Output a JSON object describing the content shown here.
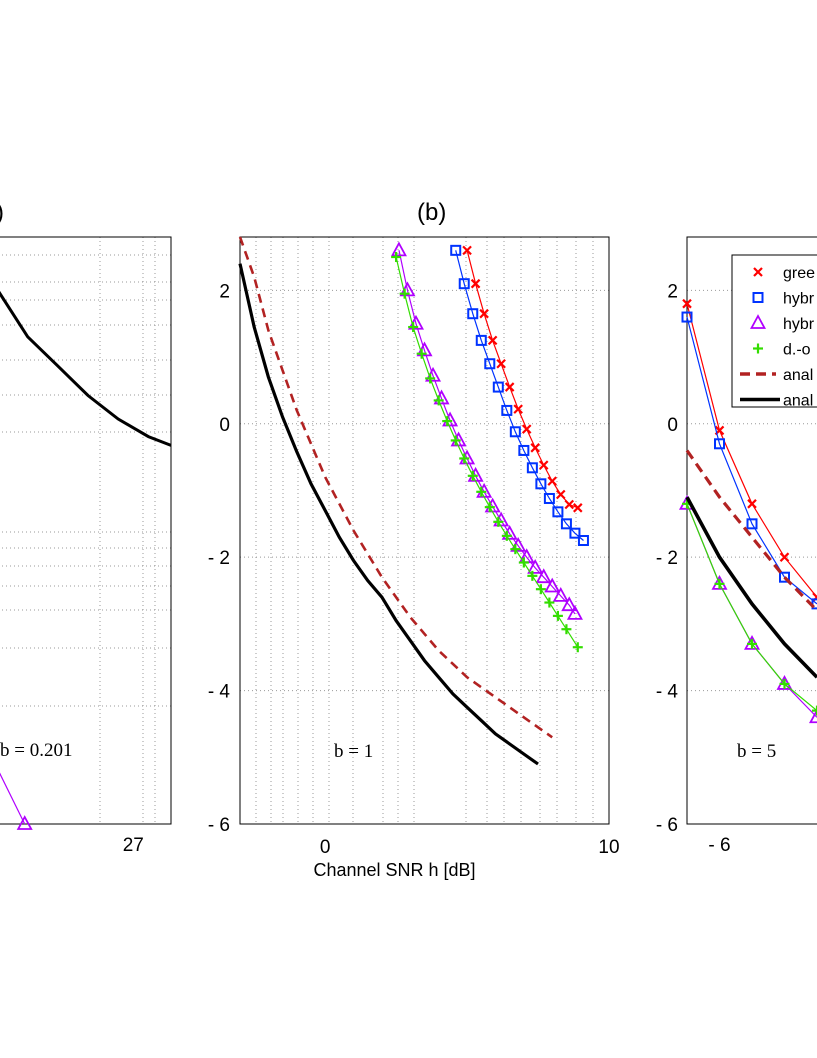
{
  "chart_data": [
    {
      "panel": "a",
      "type": "line",
      "title": "",
      "xlabel": "",
      "ylabel": "",
      "xticks": [
        27
      ],
      "xlim": [
        17.5,
        29.5
      ],
      "ylim": [
        0,
        10
      ],
      "annotation": "b = 0.201",
      "panel_label": ")",
      "series": [
        {
          "name": "analysis (black)",
          "color": "#000000",
          "style": "solid",
          "x": [
            17.5,
            20,
            22,
            24,
            26,
            27,
            28,
            29.5
          ],
          "y": [
            9.3,
            8.3,
            7.8,
            7.3,
            6.9,
            6.75,
            6.6,
            6.45
          ]
        },
        {
          "name": "hybrid (purple)",
          "color": "#b000ff",
          "style": "solid-triangle",
          "x": [
            17.5,
            19.8
          ],
          "y": [
            1.2,
            0.0
          ]
        }
      ]
    },
    {
      "panel": "b",
      "type": "line",
      "title": "(b)",
      "xlabel": "Channel SNR h  [dB]",
      "ylabel": "",
      "xlim": [
        -3,
        10
      ],
      "ylim": [
        -6,
        2.8
      ],
      "xticks": [
        0,
        10
      ],
      "yticks": [
        2,
        0,
        -2,
        -4,
        -6
      ],
      "ytick_labels": [
        "2",
        "0",
        "- 2",
        "- 4",
        "- 6"
      ],
      "annotation": "b = 1",
      "series": [
        {
          "name": "greedy",
          "color": "#ff0000",
          "marker": "x",
          "x": [
            5.0,
            5.3,
            5.6,
            5.9,
            6.2,
            6.5,
            6.8,
            7.1,
            7.4,
            7.7,
            8.0,
            8.3,
            8.6,
            8.9
          ],
          "y": [
            2.6,
            2.1,
            1.65,
            1.25,
            0.9,
            0.55,
            0.22,
            -0.08,
            -0.36,
            -0.62,
            -0.86,
            -1.06,
            -1.21,
            -1.26
          ]
        },
        {
          "name": "hybrid (blue)",
          "color": "#0033ff",
          "marker": "square",
          "x": [
            4.6,
            4.9,
            5.2,
            5.5,
            5.8,
            6.1,
            6.4,
            6.7,
            7.0,
            7.3,
            7.6,
            7.9,
            8.2,
            8.5,
            8.8,
            9.1
          ],
          "y": [
            2.6,
            2.1,
            1.65,
            1.25,
            0.9,
            0.55,
            0.2,
            -0.12,
            -0.4,
            -0.66,
            -0.9,
            -1.12,
            -1.32,
            -1.5,
            -1.64,
            -1.75
          ]
        },
        {
          "name": "hybrid (purple)",
          "color": "#b000ff",
          "marker": "triangle",
          "x": [
            2.6,
            2.9,
            3.2,
            3.5,
            3.8,
            4.1,
            4.4,
            4.7,
            5.0,
            5.3,
            5.6,
            5.9,
            6.2,
            6.5,
            6.8,
            7.1,
            7.4,
            7.7,
            8.0,
            8.3,
            8.6,
            8.8
          ],
          "y": [
            2.6,
            2.0,
            1.5,
            1.1,
            0.72,
            0.38,
            0.05,
            -0.25,
            -0.52,
            -0.78,
            -1.02,
            -1.24,
            -1.45,
            -1.65,
            -1.83,
            -2.0,
            -2.16,
            -2.3,
            -2.44,
            -2.58,
            -2.72,
            -2.85
          ]
        },
        {
          "name": "d.-o.",
          "color": "#33dd00",
          "marker": "plus",
          "x": [
            2.5,
            2.8,
            3.1,
            3.4,
            3.7,
            4.0,
            4.3,
            4.6,
            4.9,
            5.2,
            5.5,
            5.8,
            6.1,
            6.4,
            6.7,
            7.0,
            7.3,
            7.6,
            7.9,
            8.2,
            8.5,
            8.9
          ],
          "y": [
            2.5,
            1.95,
            1.45,
            1.05,
            0.68,
            0.35,
            0.04,
            -0.25,
            -0.52,
            -0.78,
            -1.02,
            -1.25,
            -1.47,
            -1.68,
            -1.88,
            -2.08,
            -2.28,
            -2.48,
            -2.68,
            -2.88,
            -3.08,
            -3.35
          ]
        },
        {
          "name": "analysis (dashed)",
          "color": "#b22222",
          "style": "dashed",
          "x": [
            -3,
            -2.5,
            -2,
            -1.5,
            -1,
            -0.5,
            0,
            1,
            2,
            3,
            4,
            5,
            6,
            7,
            8
          ],
          "y": [
            2.8,
            2.2,
            1.4,
            0.8,
            0.2,
            -0.3,
            -0.8,
            -1.6,
            -2.3,
            -2.9,
            -3.4,
            -3.8,
            -4.1,
            -4.4,
            -4.7
          ]
        },
        {
          "name": "analysis (solid)",
          "color": "#000000",
          "style": "solid",
          "x": [
            -3,
            -2.5,
            -2,
            -1.5,
            -1,
            -0.5,
            0,
            0.5,
            1,
            1.5,
            2,
            2.5,
            3,
            3.5,
            4,
            4.5,
            5,
            5.5,
            6,
            6.5,
            7,
            7.5
          ],
          "y": [
            2.4,
            1.45,
            0.7,
            0.1,
            -0.42,
            -0.9,
            -1.3,
            -1.7,
            -2.05,
            -2.35,
            -2.6,
            -2.95,
            -3.25,
            -3.55,
            -3.8,
            -4.05,
            -4.25,
            -4.45,
            -4.65,
            -4.8,
            -4.95,
            -5.1
          ]
        }
      ]
    },
    {
      "panel": "c",
      "type": "line",
      "title": "",
      "xlabel": "",
      "ylabel": "",
      "xlim": [
        -7,
        -2.6
      ],
      "ylim": [
        -6,
        2.8
      ],
      "xticks": [
        -6
      ],
      "xtick_labels": [
        "- 6"
      ],
      "yticks": [
        2,
        0,
        -2,
        -4,
        -6
      ],
      "ytick_labels": [
        "2",
        "0",
        "- 2",
        "- 4",
        "- 6"
      ],
      "annotation": "b = 5",
      "legend_location": "top-right",
      "legend": [
        {
          "label": "gree",
          "marker": "x",
          "color": "#ff0000"
        },
        {
          "label": "hybr",
          "marker": "square",
          "color": "#0033ff"
        },
        {
          "label": "hybr",
          "marker": "triangle",
          "color": "#b000ff"
        },
        {
          "label": "d.-o",
          "marker": "plus",
          "color": "#33dd00"
        },
        {
          "label": "anal",
          "marker": "dashed-line",
          "color": "#b22222"
        },
        {
          "label": "anal",
          "marker": "solid-line",
          "color": "#000000"
        }
      ],
      "series": [
        {
          "name": "gree",
          "color": "#ff0000",
          "marker": "x",
          "x": [
            -7,
            -6,
            -5,
            -4,
            -3
          ],
          "y": [
            1.8,
            -0.1,
            -1.2,
            -2.0,
            -2.6
          ]
        },
        {
          "name": "hybr (blue)",
          "color": "#0033ff",
          "marker": "square",
          "x": [
            -7,
            -6,
            -5,
            -4,
            -3
          ],
          "y": [
            1.6,
            -0.3,
            -1.5,
            -2.3,
            -2.7
          ]
        },
        {
          "name": "hybr (purple)",
          "color": "#b000ff",
          "marker": "triangle",
          "x": [
            -7,
            -6,
            -5,
            -4,
            -3
          ],
          "y": [
            -1.2,
            -2.4,
            -3.3,
            -3.9,
            -4.4
          ]
        },
        {
          "name": "d.-o",
          "color": "#33dd00",
          "marker": "plus",
          "x": [
            -7,
            -6,
            -5,
            -4,
            -3
          ],
          "y": [
            -1.2,
            -2.4,
            -3.3,
            -3.9,
            -4.3
          ]
        },
        {
          "name": "anal (dashed)",
          "color": "#b22222",
          "style": "dashed",
          "x": [
            -7,
            -6,
            -5,
            -4,
            -3
          ],
          "y": [
            -0.4,
            -1.1,
            -1.7,
            -2.3,
            -2.8
          ]
        },
        {
          "name": "anal (solid)",
          "color": "#000000",
          "style": "solid",
          "x": [
            -7,
            -6,
            -5,
            -4,
            -3
          ],
          "y": [
            -1.1,
            -2.0,
            -2.7,
            -3.3,
            -3.8
          ]
        }
      ]
    }
  ]
}
